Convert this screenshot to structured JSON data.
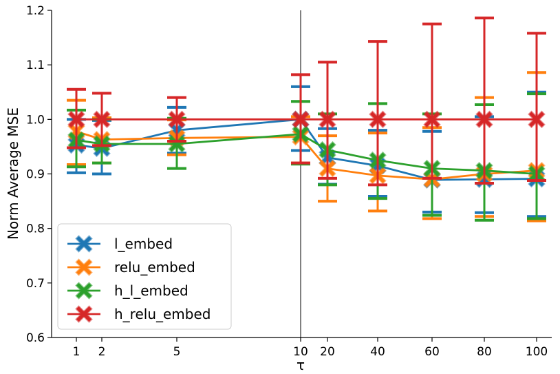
{
  "chart_data": {
    "type": "line",
    "xlabel": "τ",
    "ylabel": "Norm Average MSE",
    "ylim": [
      0.6,
      1.2
    ],
    "yticks": [
      "0.6",
      "0.7",
      "0.8",
      "0.9",
      "1.0",
      "1.1",
      "1.2"
    ],
    "x": [
      "1",
      "2",
      "5",
      "10",
      "20",
      "40",
      "60",
      "80",
      "100"
    ],
    "vline_at": "10",
    "legend_location": "lower-left",
    "series": [
      {
        "name": "l_embed",
        "color": "#1f77b4",
        "values": [
          0.953,
          0.947,
          0.98,
          1.0,
          0.93,
          0.915,
          0.889,
          0.89,
          0.891
        ],
        "err_low": [
          0.902,
          0.9,
          0.938,
          0.943,
          0.881,
          0.859,
          0.83,
          0.829,
          0.822
        ],
        "err_high": [
          1.0,
          0.998,
          1.022,
          1.06,
          0.983,
          0.98,
          0.978,
          1.005,
          1.05
        ]
      },
      {
        "name": "relu_embed",
        "color": "#ff7f0e",
        "values": [
          0.978,
          0.963,
          0.966,
          0.968,
          0.91,
          0.897,
          0.89,
          0.9,
          0.906
        ],
        "err_low": [
          0.917,
          0.92,
          0.935,
          0.92,
          0.85,
          0.832,
          0.818,
          0.822,
          0.814
        ],
        "err_high": [
          1.035,
          1.003,
          0.999,
          1.005,
          0.97,
          0.975,
          0.985,
          1.04,
          1.086
        ]
      },
      {
        "name": "h_l_embed",
        "color": "#2ca02c",
        "values": [
          0.962,
          0.955,
          0.955,
          0.973,
          0.944,
          0.925,
          0.91,
          0.906,
          0.9
        ],
        "err_low": [
          0.913,
          0.92,
          0.91,
          0.918,
          0.88,
          0.855,
          0.824,
          0.815,
          0.818
        ],
        "err_high": [
          1.017,
          1.0,
          1.002,
          1.033,
          1.01,
          1.029,
          1.01,
          1.027,
          1.047
        ]
      },
      {
        "name": "h_relu_embed",
        "color": "#d62728",
        "values": [
          1.0,
          1.0,
          1.0,
          1.0,
          1.0,
          1.0,
          1.0,
          1.0,
          1.0
        ],
        "err_low": [
          0.948,
          0.952,
          0.96,
          0.92,
          0.892,
          0.88,
          0.892,
          0.883,
          0.888
        ],
        "err_high": [
          1.055,
          1.048,
          1.04,
          1.082,
          1.105,
          1.143,
          1.175,
          1.186,
          1.158
        ]
      }
    ]
  }
}
